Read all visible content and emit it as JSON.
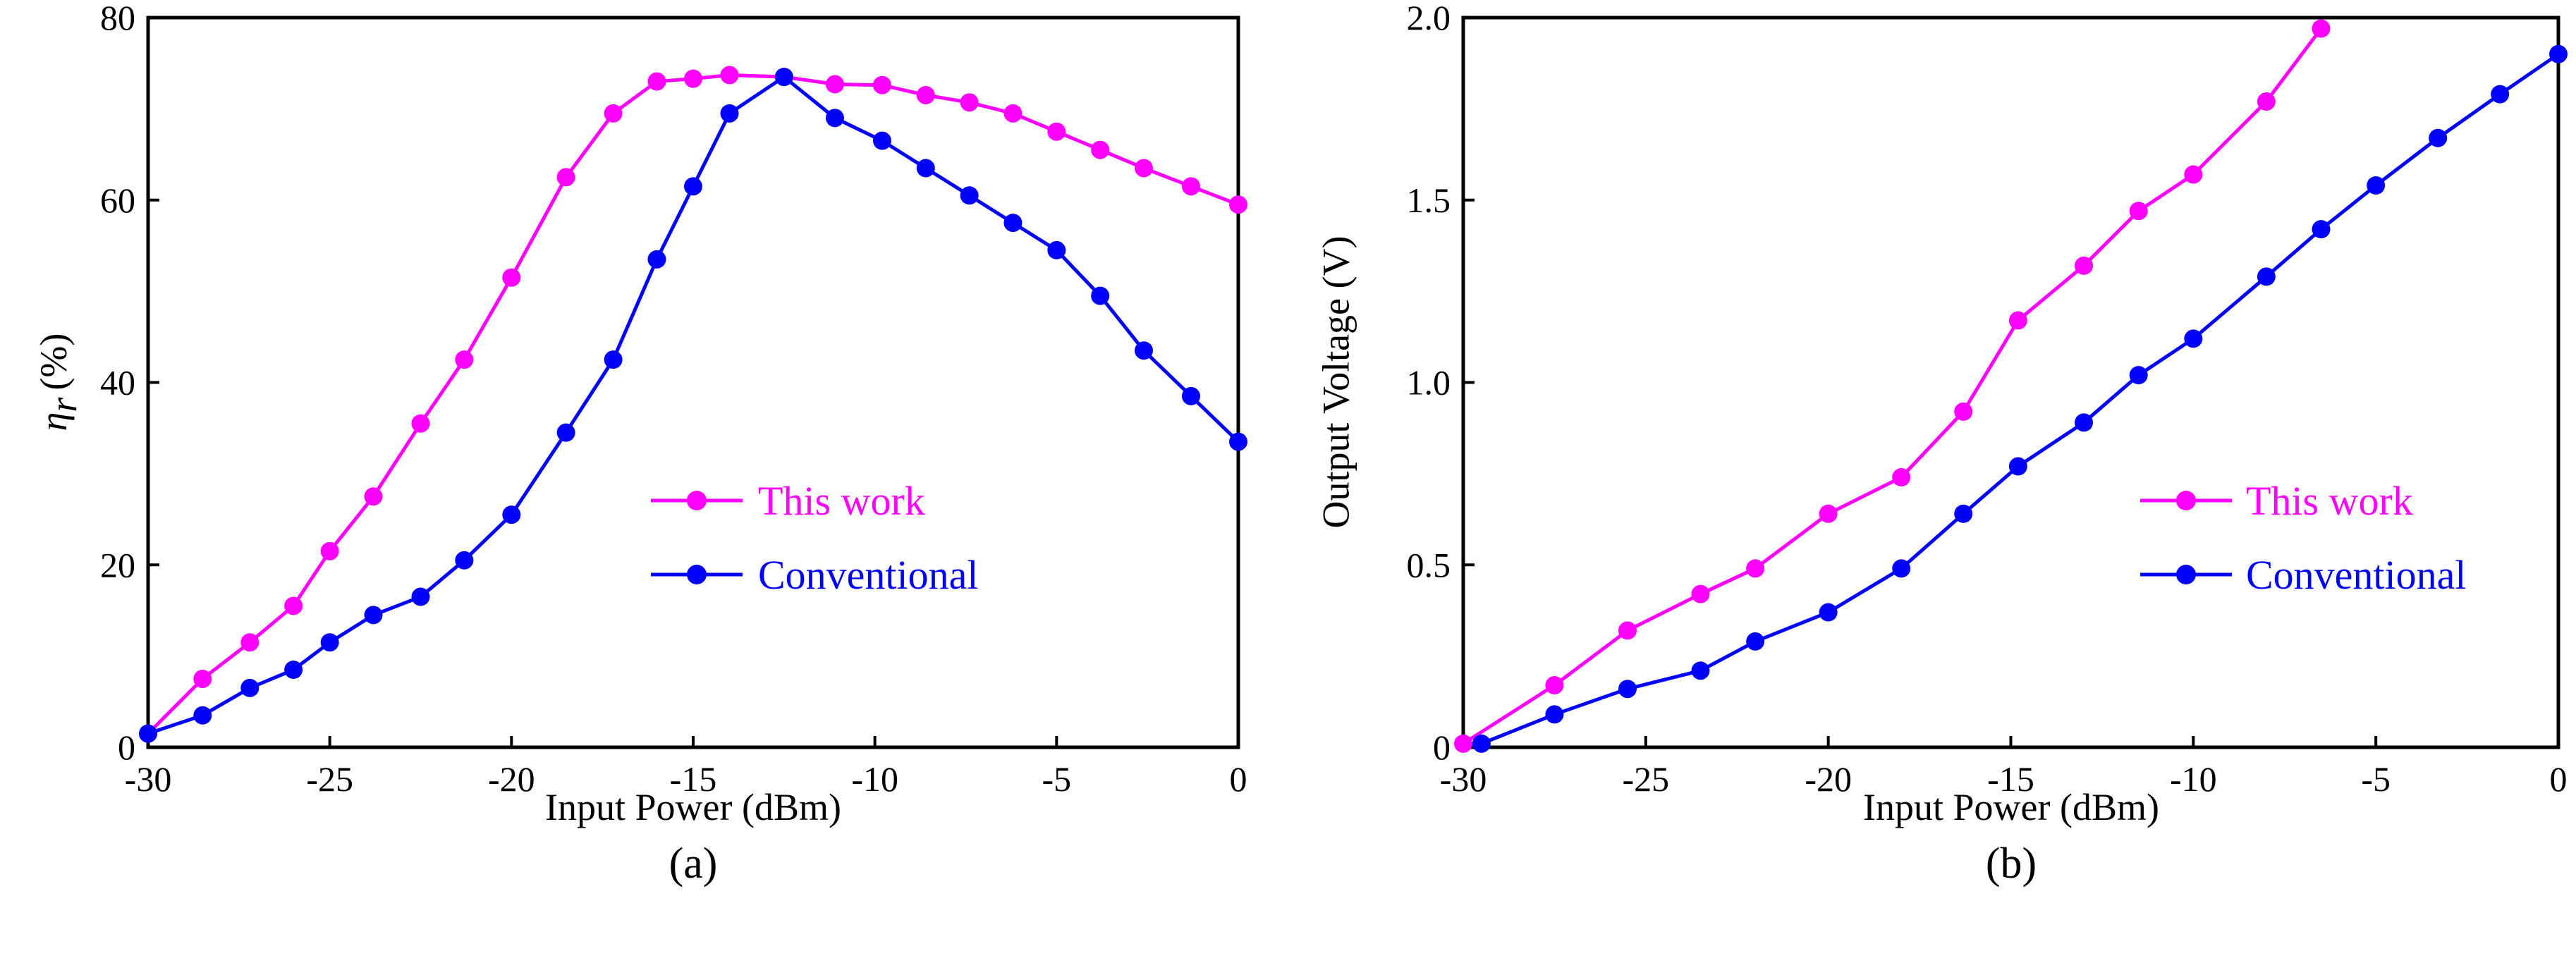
{
  "chart_data": [
    {
      "type": "line",
      "caption": "(a)",
      "xlabel": "Input Power (dBm)",
      "ylabel_symbol": "η",
      "ylabel_sub": "r",
      "ylabel_unit": "(%)",
      "xlim": [
        -30,
        0
      ],
      "ylim": [
        0,
        80
      ],
      "xticks": [
        -30,
        -25,
        -20,
        -15,
        -10,
        -5,
        0
      ],
      "yticks": [
        0,
        20,
        40,
        60,
        80
      ],
      "grid": false,
      "legend_position": "center-right",
      "series": [
        {
          "name": "This work",
          "color": "#ff00ff",
          "x": [
            -30,
            -28.5,
            -27.2,
            -26,
            -25,
            -23.8,
            -22.5,
            -21.3,
            -20,
            -18.5,
            -17.2,
            -16,
            -15,
            -14,
            -12.5,
            -11.1,
            -9.8,
            -8.6,
            -7.4,
            -6.2,
            -5,
            -3.8,
            -2.6,
            -1.3,
            0
          ],
          "y": [
            1.5,
            7.5,
            11.5,
            15.5,
            21.5,
            27.5,
            35.5,
            42.5,
            51.5,
            62.5,
            69.5,
            73,
            73.3,
            73.7,
            73.5,
            72.7,
            72.6,
            71.5,
            70.7,
            69.5,
            67.5,
            65.5,
            63.5,
            61.5,
            59.5
          ]
        },
        {
          "name": "Conventional",
          "color": "#0000ff",
          "x": [
            -30,
            -28.5,
            -27.2,
            -26,
            -25,
            -23.8,
            -22.5,
            -21.3,
            -20,
            -18.5,
            -17.2,
            -16,
            -15,
            -14,
            -12.5,
            -11.1,
            -9.8,
            -8.6,
            -7.4,
            -6.2,
            -5,
            -3.8,
            -2.6,
            -1.3,
            0
          ],
          "y": [
            1.5,
            3.5,
            6.5,
            8.5,
            11.5,
            14.5,
            16.5,
            20.5,
            25.5,
            34.5,
            42.5,
            53.5,
            61.5,
            69.5,
            73.5,
            69,
            66.5,
            63.5,
            60.5,
            57.5,
            54.5,
            49.5,
            43.5,
            38.5,
            33.5
          ]
        }
      ]
    },
    {
      "type": "line",
      "caption": "(b)",
      "xlabel": "Input Power (dBm)",
      "ylabel": "Output Voltage (V)",
      "xlim": [
        -30,
        0
      ],
      "ylim": [
        0,
        2
      ],
      "xticks": [
        -30,
        -25,
        -20,
        -15,
        -10,
        -5,
        0
      ],
      "yticks": [
        0,
        0.5,
        1.0,
        1.5,
        2.0
      ],
      "ytick_labels": [
        "0",
        "0.5",
        "1.0",
        "1.5",
        "2.0"
      ],
      "grid": false,
      "legend_position": "center-right",
      "series": [
        {
          "name": "This work",
          "color": "#ff00ff",
          "x": [
            -30,
            -27.5,
            -25.5,
            -23.5,
            -22,
            -20,
            -18,
            -16.3,
            -14.8,
            -13,
            -11.5,
            -10,
            -8,
            -6.5
          ],
          "y": [
            0.01,
            0.17,
            0.32,
            0.42,
            0.49,
            0.64,
            0.74,
            0.92,
            1.17,
            1.32,
            1.47,
            1.57,
            1.77,
            1.97
          ]
        },
        {
          "name": "Conventional",
          "color": "#0000ff",
          "x": [
            -29.5,
            -27.5,
            -25.5,
            -23.5,
            -22,
            -20,
            -18,
            -16.3,
            -14.8,
            -13,
            -11.5,
            -10,
            -8,
            -6.5,
            -5,
            -3.3,
            -1.6,
            0
          ],
          "y": [
            0.01,
            0.09,
            0.16,
            0.21,
            0.29,
            0.37,
            0.49,
            0.64,
            0.77,
            0.89,
            1.02,
            1.12,
            1.29,
            1.42,
            1.54,
            1.67,
            1.79,
            1.9
          ]
        }
      ]
    }
  ]
}
